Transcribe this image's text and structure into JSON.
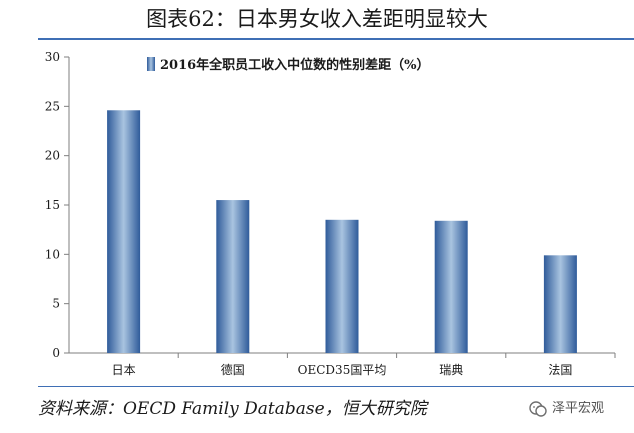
{
  "page_title": "图表62：日本男女收入差距明显较大",
  "source": "资料来源：OECD Family Database，恒大研究院",
  "watermark": "泽平宏观",
  "colors": {
    "bar_top": "#9dbbd9",
    "bar_edge": "#2f5b9a",
    "rule": "#3f6fb5",
    "axis": "#7f7f7f"
  },
  "chart_data": {
    "type": "bar",
    "categories": [
      "日本",
      "德国",
      "OECD35国平均",
      "瑞典",
      "法国"
    ],
    "series": [
      {
        "name": "2016年全职员工收入中位数的性别差距（%）",
        "values": [
          24.6,
          15.5,
          13.5,
          13.4,
          9.9
        ]
      }
    ],
    "ylim": [
      0,
      30
    ],
    "yticks": [
      0,
      5,
      10,
      15,
      20,
      25,
      30
    ],
    "grid": false,
    "legend": "top-center"
  }
}
